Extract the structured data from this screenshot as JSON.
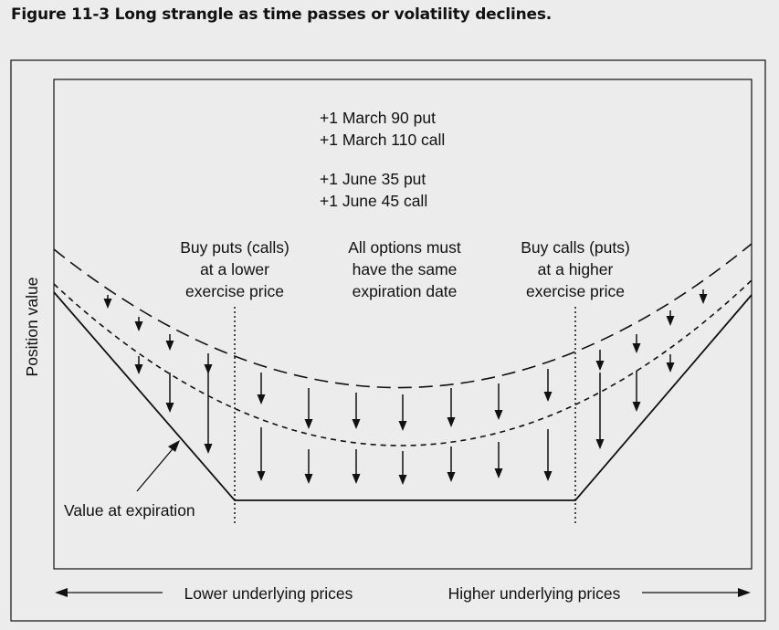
{
  "figure": {
    "title": "Figure 11-3  Long strangle as time passes or volatility declines."
  },
  "diagram": {
    "y_axis_label": "Position value",
    "positions": [
      "+1 March 90 put",
      "+1 March 110 call",
      "+1 June 35 put",
      "+1 June 45 call"
    ],
    "left_note": [
      "Buy puts (calls)",
      "at a lower",
      "exercise price"
    ],
    "center_note": [
      "All options must",
      "have the same",
      "expiration date"
    ],
    "right_note": [
      "Buy calls (puts)",
      "at a higher",
      "exercise price"
    ],
    "expiration_label": "Value at expiration",
    "bottom_left_label": "Lower underlying prices",
    "bottom_right_label": "Higher underlying prices",
    "curves": [
      "long-dash-curve",
      "short-dash-curve",
      "solid-expiration-line"
    ],
    "colors": {
      "background": "#ececec",
      "line": "#111111"
    }
  }
}
